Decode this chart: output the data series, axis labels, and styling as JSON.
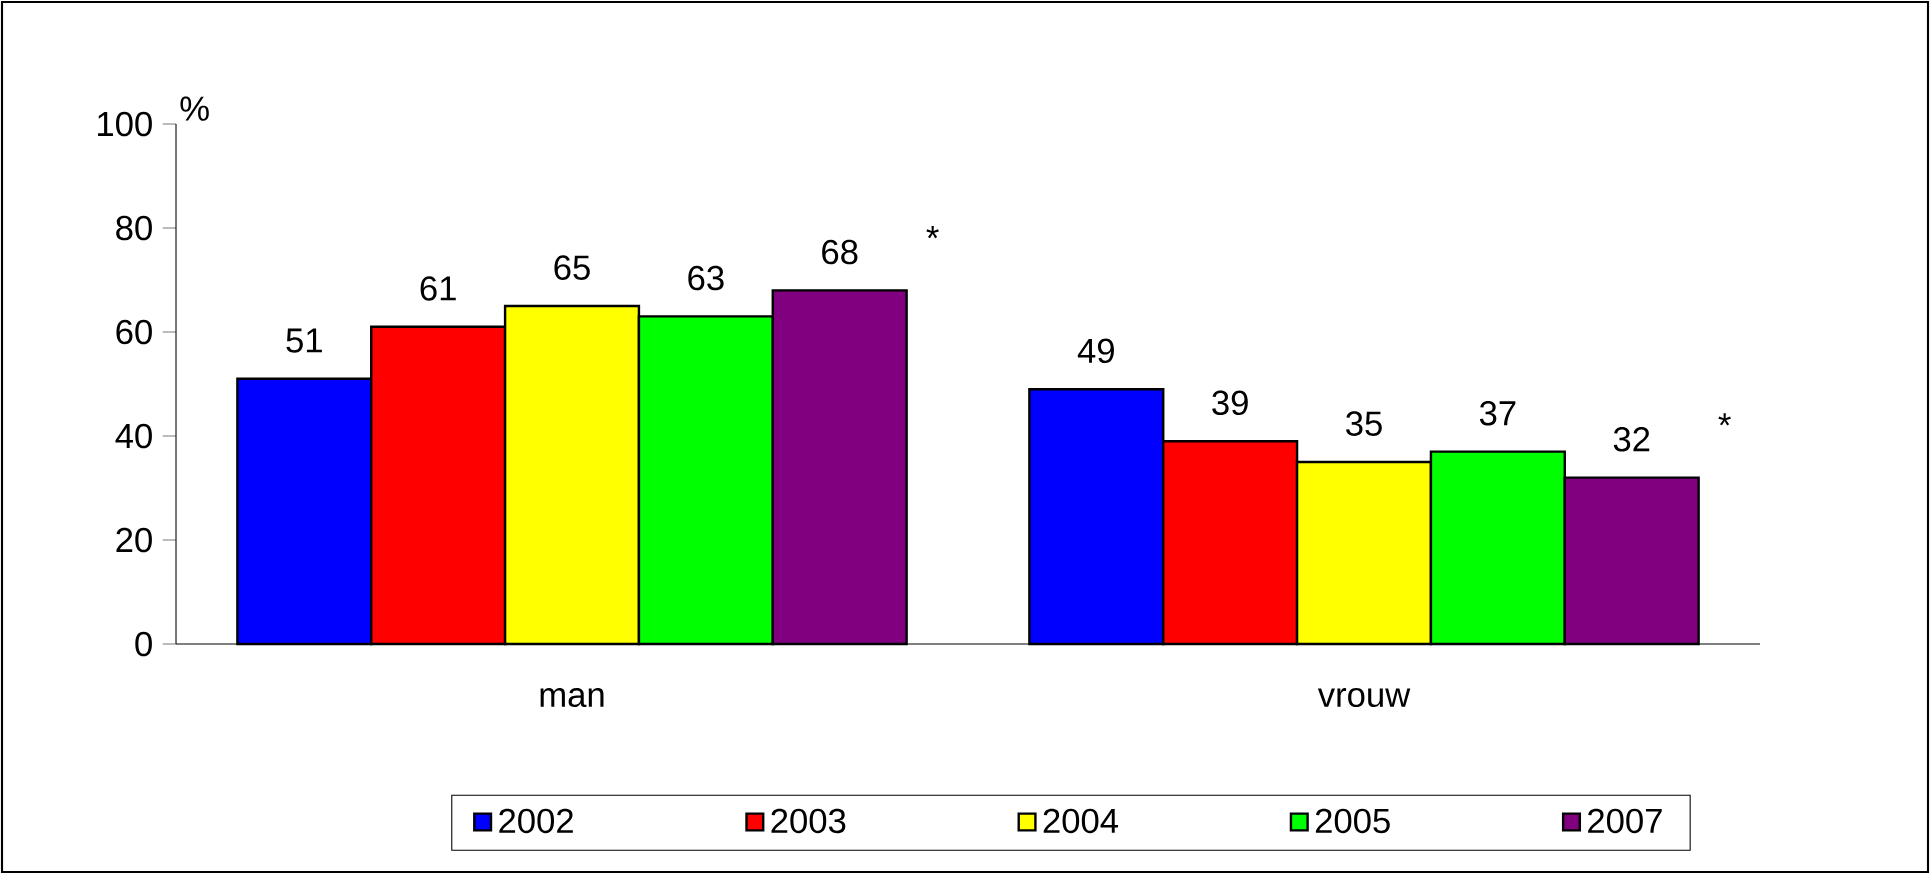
{
  "chart_data": {
    "type": "bar",
    "ylabel": "%",
    "categories": [
      "man",
      "vrouw"
    ],
    "series": [
      {
        "name": "2002",
        "color": "#0000ff",
        "values": [
          51,
          49
        ]
      },
      {
        "name": "2003",
        "color": "#ff0000",
        "values": [
          61,
          39
        ]
      },
      {
        "name": "2004",
        "color": "#ffff00",
        "values": [
          65,
          35
        ]
      },
      {
        "name": "2005",
        "color": "#00ff00",
        "values": [
          63,
          37
        ]
      },
      {
        "name": "2007",
        "color": "#800080",
        "values": [
          68,
          32
        ]
      }
    ],
    "ylim": [
      0,
      100
    ],
    "yticks": [
      0,
      20,
      40,
      60,
      80,
      100
    ],
    "data_labels": true,
    "legend": "bottom",
    "grid": false,
    "annotations": [
      "*",
      "*"
    ]
  }
}
